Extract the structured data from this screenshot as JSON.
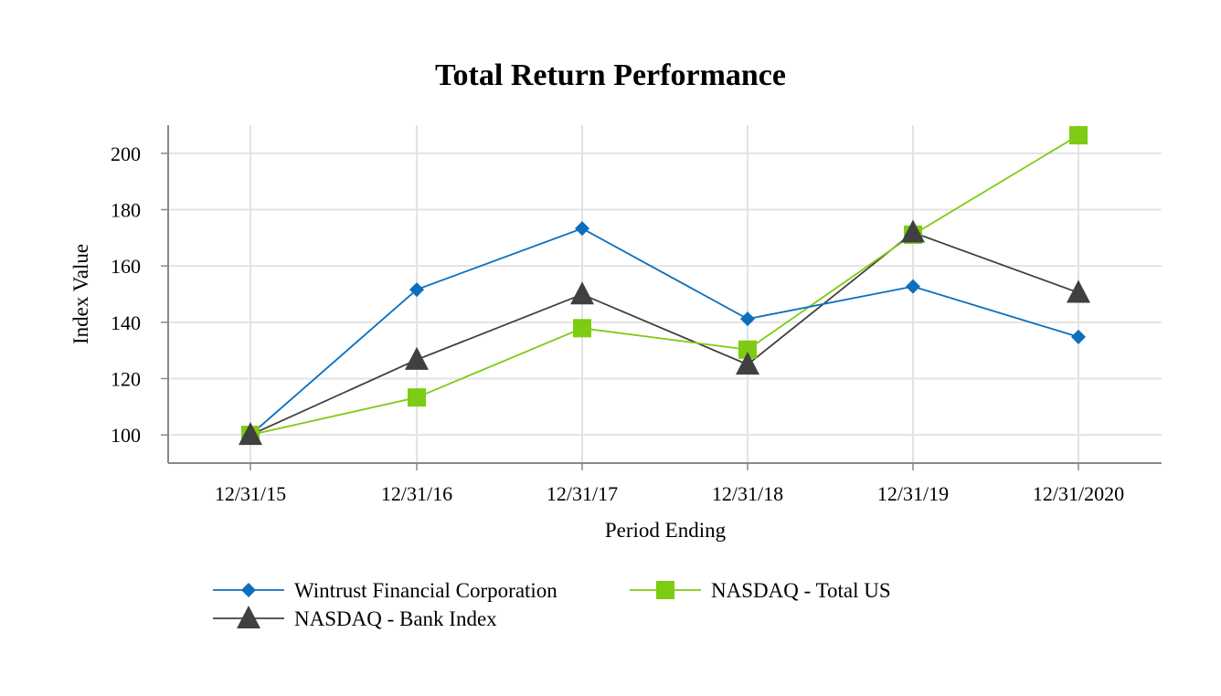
{
  "chart_data": {
    "type": "line",
    "title": "Total Return Performance",
    "xlabel": "Period Ending",
    "ylabel": "Index Value",
    "categories": [
      "12/31/15",
      "12/31/16",
      "12/31/17",
      "12/31/18",
      "12/31/19",
      "12/31/2020"
    ],
    "ylim": [
      90,
      210
    ],
    "yticks": [
      100,
      120,
      140,
      160,
      180,
      200
    ],
    "grid": true,
    "legend_position": "bottom",
    "series": [
      {
        "name": "Wintrust Financial Corporation",
        "values": [
          100,
          151.6,
          173.3,
          141.2,
          152.7,
          134.8
        ],
        "color": "#0b6fbd",
        "marker": "diamond"
      },
      {
        "name": "NASDAQ - Total US",
        "values": [
          100,
          113.3,
          137.9,
          130.3,
          171.1,
          206.4
        ],
        "color": "#7dcb13",
        "marker": "square"
      },
      {
        "name": "NASDAQ - Bank Index",
        "values": [
          100,
          126.7,
          149.9,
          125.0,
          171.9,
          150.5
        ],
        "color": "#404040",
        "marker": "triangle"
      }
    ]
  }
}
